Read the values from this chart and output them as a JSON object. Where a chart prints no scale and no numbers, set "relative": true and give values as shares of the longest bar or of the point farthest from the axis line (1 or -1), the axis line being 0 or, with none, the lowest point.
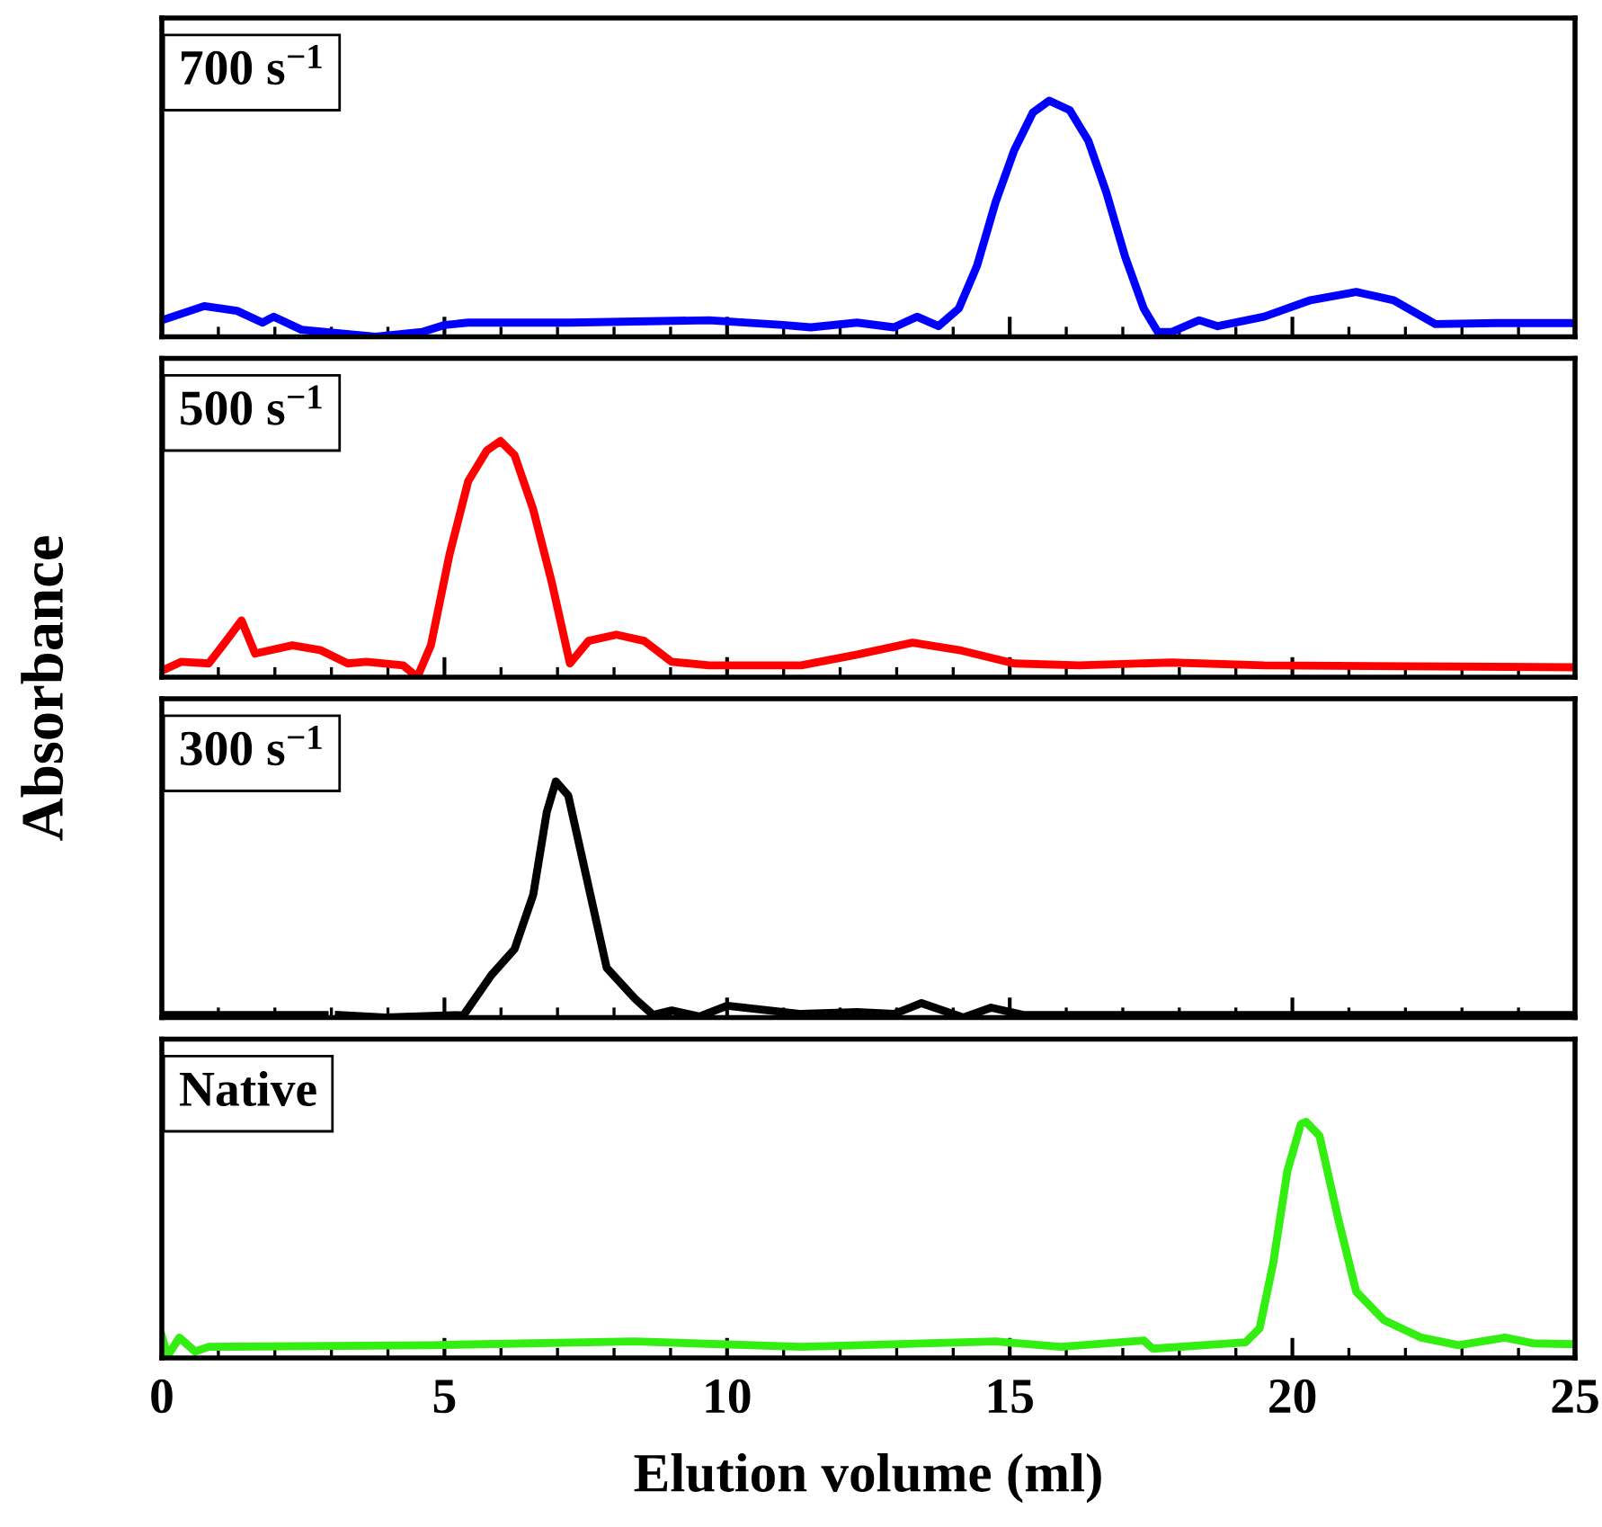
{
  "chart_data": [
    {
      "type": "line",
      "relative": true,
      "ylabel": "Absorbance",
      "annotations": [
        "700 s$^{−1}$"
      ],
      "xlim": [
        0,
        25
      ],
      "xticks": [
        0,
        5,
        10,
        15,
        20,
        25
      ],
      "tick_labels": false,
      "grid": false,
      "legend": false,
      "series": [
        {
          "color": "#0000ff",
          "x": [
            0,
            0.75,
            1.33,
            1.78,
            1.98,
            2.47,
            3.78,
            4.6,
            5.01,
            5.42,
            7.22,
            9.68,
            10.99,
            11.48,
            12.3,
            12.95,
            13.36,
            13.74,
            14.1,
            14.42,
            14.75,
            15.08,
            15.41,
            15.7,
            16.06,
            16.39,
            16.71,
            17.04,
            17.37,
            17.62,
            17.86,
            18.35,
            18.68,
            19.5,
            20.32,
            21.13,
            21.79,
            22.53,
            23.6,
            25
          ],
          "values": [
            0.07,
            0.13,
            0.11,
            0.06,
            0.085,
            0.03,
            0,
            0.02,
            0.05,
            0.06,
            0.06,
            0.07,
            0.05,
            0.04,
            0.06,
            0.04,
            0.085,
            0.045,
            0.12,
            0.3,
            0.57,
            0.79,
            0.95,
            1,
            0.96,
            0.83,
            0.61,
            0.34,
            0.12,
            0.02,
            0.02,
            0.07,
            0.045,
            0.085,
            0.155,
            0.19,
            0.155,
            0.054,
            0.058,
            0.058
          ]
        }
      ]
    },
    {
      "type": "line",
      "relative": true,
      "annotations": [
        "500 s$^{−1}$"
      ],
      "xlim": [
        0,
        25
      ],
      "xticks": [
        0,
        5,
        10,
        15,
        20,
        25
      ],
      "tick_labels": false,
      "grid": false,
      "legend": false,
      "series": [
        {
          "color": "#ff0000",
          "x": [
            0,
            0.34,
            0.83,
            1.08,
            1.41,
            1.65,
            2.31,
            2.8,
            3.29,
            3.62,
            4.27,
            4.52,
            4.76,
            5.09,
            5.42,
            5.75,
            5.99,
            6.24,
            6.57,
            6.9,
            7.22,
            7.55,
            8.04,
            8.53,
            9.02,
            9.68,
            11.31,
            12.3,
            13.28,
            14.1,
            15.08,
            16.23,
            17.86,
            19.5,
            25
          ],
          "values": [
            0.027,
            0.065,
            0.058,
            0.135,
            0.24,
            0.1,
            0.135,
            0.115,
            0.058,
            0.065,
            0.05,
            0,
            0.135,
            0.52,
            0.83,
            0.96,
            1,
            0.94,
            0.71,
            0.4,
            0.058,
            0.154,
            0.18,
            0.154,
            0.065,
            0.05,
            0.05,
            0.096,
            0.146,
            0.115,
            0.058,
            0.05,
            0.062,
            0.05,
            0.042
          ]
        }
      ]
    },
    {
      "type": "line",
      "relative": true,
      "annotations": [
        "300 s$^{−1}$"
      ],
      "xlim": [
        0,
        25
      ],
      "xticks": [
        0,
        5,
        10,
        15,
        20,
        25
      ],
      "tick_labels": false,
      "grid": false,
      "legend": false,
      "series": [
        {
          "color": "#000000",
          "x": [
            0,
            2.88,
            2.95,
            3.13,
            3.95,
            5.34,
            5.83,
            6.24,
            6.57,
            6.81,
            6.97,
            7.19,
            7.47,
            7.87,
            8.37,
            8.69,
            9.02,
            9.51,
            10.0,
            11.31,
            12.3,
            12.95,
            13.44,
            14.18,
            14.67,
            15.24,
            25
          ],
          "values": [
            0.011,
            0.011,
            null,
            0.011,
            0,
            0.011,
            0.18,
            0.29,
            0.52,
            0.87,
            1,
            0.94,
            0.64,
            0.21,
            0.08,
            0.011,
            0.03,
            0.004,
            0.05,
            0.015,
            0.023,
            0.015,
            0.061,
            0,
            0.042,
            0.011,
            0.011
          ]
        }
      ]
    },
    {
      "type": "line",
      "relative": true,
      "xlabel": "Elution volume (ml)",
      "annotations": [
        "Native"
      ],
      "xlim": [
        0,
        25
      ],
      "xticks": [
        0,
        5,
        10,
        15,
        20,
        25
      ],
      "tick_labels": "x",
      "grid": false,
      "legend": false,
      "series": [
        {
          "color": "#33ee11",
          "x": [
            0,
            0.1,
            0.31,
            0.59,
            0.83,
            4.76,
            8.37,
            11.31,
            14.75,
            15.9,
            17.37,
            17.53,
            19.17,
            19.42,
            19.66,
            19.91,
            20.15,
            20.24,
            20.48,
            20.81,
            21.13,
            21.62,
            22.28,
            22.94,
            23.76,
            24.25,
            25
          ],
          "values": [
            0.093,
            0.008,
            0.086,
            0.027,
            0.047,
            0.054,
            0.07,
            0.047,
            0.07,
            0.047,
            0.074,
            0.039,
            0.066,
            0.125,
            0.4,
            0.79,
            0.99,
            1,
            0.94,
            0.59,
            0.28,
            0.16,
            0.086,
            0.054,
            0.086,
            0.062,
            0.058
          ]
        }
      ]
    }
  ]
}
